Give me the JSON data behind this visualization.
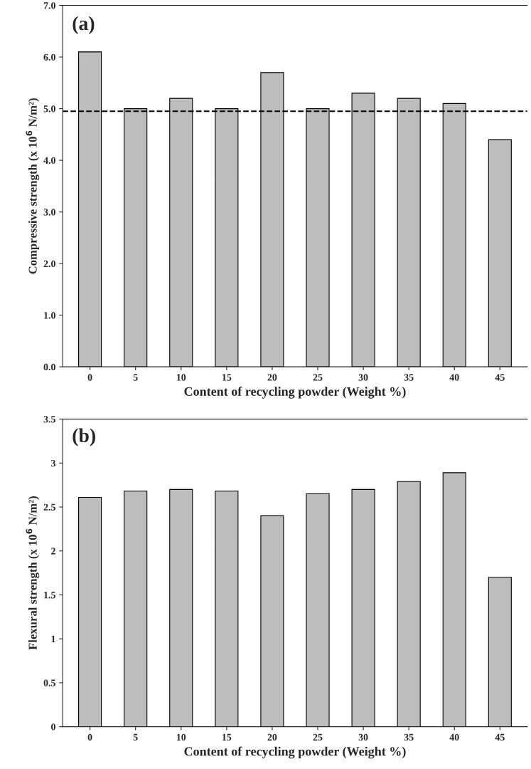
{
  "chart_data": [
    {
      "type": "bar",
      "annotations": [
        "(a)"
      ],
      "xlabel": "Content of recycling powder (Weight %)",
      "ylabel": "Compressive strength (x 10$^{6}$ N/m²)",
      "categories": [
        "0",
        "5",
        "10",
        "15",
        "20",
        "25",
        "30",
        "35",
        "40",
        "45"
      ],
      "values": [
        6.1,
        5.0,
        5.2,
        5.0,
        5.7,
        5.0,
        5.3,
        5.2,
        5.1,
        4.4
      ],
      "color": "#bdbdbd",
      "ylim": [
        0,
        7
      ],
      "yticks": [
        {
          "value": 0,
          "label": "0.0"
        },
        {
          "value": 1,
          "label": "1.0"
        },
        {
          "value": 2,
          "label": "2.0"
        },
        {
          "value": 3,
          "label": "3.0"
        },
        {
          "value": 4,
          "label": "4.0"
        },
        {
          "value": 5,
          "label": "5.0"
        },
        {
          "value": 6,
          "label": "6.0"
        },
        {
          "value": 7,
          "label": "7.0"
        }
      ],
      "ref_lines": [
        {
          "axis": "y",
          "value": 4.95,
          "color": "#000000",
          "line_style": "dashed"
        }
      ],
      "grid": false
    },
    {
      "type": "bar",
      "annotations": [
        "(b)"
      ],
      "xlabel": "Content of recycling powder (Weight %)",
      "ylabel": "Flexural strength (x 10$^{6}$ N/m²)",
      "categories": [
        "0",
        "5",
        "10",
        "15",
        "20",
        "25",
        "30",
        "35",
        "40",
        "45"
      ],
      "values": [
        2.61,
        2.68,
        2.7,
        2.68,
        2.4,
        2.65,
        2.7,
        2.79,
        2.89,
        1.7
      ],
      "color": "#bdbdbd",
      "ylim": [
        0,
        3.5
      ],
      "yticks": [
        0,
        0.5,
        1,
        1.5,
        2,
        2.5,
        3,
        3.5
      ],
      "grid": false
    }
  ]
}
